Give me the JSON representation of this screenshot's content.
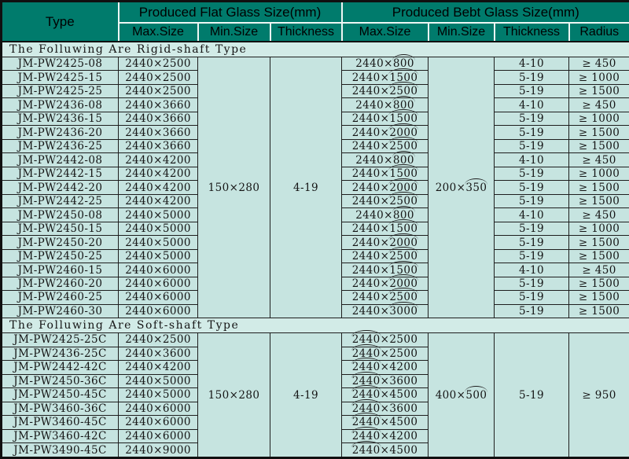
{
  "table": {
    "header": {
      "type_label": "Type",
      "flat_group_label": "Produced Flat Glass Size(mm)",
      "bent_group_label": "Produced Bebt Glass Size(mm)",
      "sub": {
        "flat_max": "Max.Size",
        "flat_min": "Min.Size",
        "flat_thickness": "Thickness",
        "bent_max": "Max.Size",
        "bent_min": "Min.Size",
        "bent_thickness": "Thickness",
        "radius": "Radius"
      }
    },
    "arc_note": "values wrapped in [] carry an arc/overbrace mark in the original",
    "sections": [
      {
        "title": "The Folluwing Are Rigid-shaft Type",
        "merged": {
          "flat_min": "150×280",
          "flat_thickness": "4-19",
          "bent_min": "200×[350]"
        },
        "rows": [
          {
            "type": "JM-PW2425-08",
            "flat_max": "2440×2500",
            "bent_max": "2440×[800]",
            "bent_thickness": "4-10",
            "radius": "≥ 450"
          },
          {
            "type": "JM-PW2425-15",
            "flat_max": "2440×2500",
            "bent_max": "2440×[1500]",
            "bent_thickness": "5-19",
            "radius": "≥ 1000"
          },
          {
            "type": "JM-PW2425-25",
            "flat_max": "2440×2500",
            "bent_max": "2440×[2500]",
            "bent_thickness": "5-19",
            "radius": "≥ 1500"
          },
          {
            "type": "JM-PW2436-08",
            "flat_max": "2440×3660",
            "bent_max": "2440×[800]",
            "bent_thickness": "4-10",
            "radius": "≥ 450"
          },
          {
            "type": "JM-PW2436-15",
            "flat_max": "2440×3660",
            "bent_max": "2440×[1500]",
            "bent_thickness": "5-19",
            "radius": "≥ 1000"
          },
          {
            "type": "JM-PW2436-20",
            "flat_max": "2440×3660",
            "bent_max": "2440×[2000]",
            "bent_thickness": "5-19",
            "radius": "≥ 1500"
          },
          {
            "type": "JM-PW2436-25",
            "flat_max": "2440×3660",
            "bent_max": "2440×[2500]",
            "bent_thickness": "5-19",
            "radius": "≥ 1500"
          },
          {
            "type": "JM-PW2442-08",
            "flat_max": "2440×4200",
            "bent_max": "2440×[800]",
            "bent_thickness": "4-10",
            "radius": "≥ 450"
          },
          {
            "type": "JM-PW2442-15",
            "flat_max": "2440×4200",
            "bent_max": "2440×[1500]",
            "bent_thickness": "5-19",
            "radius": "≥ 1000"
          },
          {
            "type": "JM-PW2442-20",
            "flat_max": "2440×4200",
            "bent_max": "2440×[2000]",
            "bent_thickness": "5-19",
            "radius": "≥ 1500"
          },
          {
            "type": "JM-PW2442-25",
            "flat_max": "2440×4200",
            "bent_max": "2440×[2500]",
            "bent_thickness": "5-19",
            "radius": "≥ 1500"
          },
          {
            "type": "JM-PW2450-08",
            "flat_max": "2440×5000",
            "bent_max": "2440×[800]",
            "bent_thickness": "4-10",
            "radius": "≥ 450"
          },
          {
            "type": "JM-PW2450-15",
            "flat_max": "2440×5000",
            "bent_max": "2440×[1500]",
            "bent_thickness": "5-19",
            "radius": "≥ 1000"
          },
          {
            "type": "JM-PW2450-20",
            "flat_max": "2440×5000",
            "bent_max": "2440×[2000]",
            "bent_thickness": "5-19",
            "radius": "≥ 1500"
          },
          {
            "type": "JM-PW2450-25",
            "flat_max": "2440×5000",
            "bent_max": "2440×[2500]",
            "bent_thickness": "5-19",
            "radius": "≥ 1500"
          },
          {
            "type": "JM-PW2460-15",
            "flat_max": "2440×6000",
            "bent_max": "2440×[1500]",
            "bent_thickness": "4-10",
            "radius": "≥ 450"
          },
          {
            "type": "JM-PW2460-20",
            "flat_max": "2440×6000",
            "bent_max": "2440×[2000]",
            "bent_thickness": "5-19",
            "radius": "≥ 1500"
          },
          {
            "type": "JM-PW2460-25",
            "flat_max": "2440×6000",
            "bent_max": "2440×[2500]",
            "bent_thickness": "5-19",
            "radius": "≥ 1500"
          },
          {
            "type": "JM-PW2460-30",
            "flat_max": "2440×6000",
            "bent_max": "2440×[3000]",
            "bent_thickness": "5-19",
            "radius": "≥ 1500"
          }
        ]
      },
      {
        "title": "The Folluwing Are Soft-shaft Type",
        "merged": {
          "flat_min": "150×280",
          "flat_thickness": "4-19",
          "bent_min": "400×[500]",
          "bent_thickness": "5-19",
          "radius": "≥ 950"
        },
        "rows": [
          {
            "type": "JM-PW2425-25C",
            "flat_max": "2440×2500",
            "bent_max": "[2440]×2500"
          },
          {
            "type": "JM-PW2436-25C",
            "flat_max": "2440×3600",
            "bent_max": "[2440]×2500"
          },
          {
            "type": "JM-PW2442-42C",
            "flat_max": "2440×4200",
            "bent_max": "[2440]×4200"
          },
          {
            "type": "JM-PW2450-36C",
            "flat_max": "2440×5000",
            "bent_max": "[2440]×3600"
          },
          {
            "type": "JM-PW2450-45C",
            "flat_max": "2440×5000",
            "bent_max": "[2440]×4500"
          },
          {
            "type": "JM-PW3460-36C",
            "flat_max": "2440×6000",
            "bent_max": "[2440]×3600"
          },
          {
            "type": "JM-PW3460-45C",
            "flat_max": "2440×6000",
            "bent_max": "[2440]×4500"
          },
          {
            "type": "JM-PW3460-42C",
            "flat_max": "2440×6000",
            "bent_max": "[2440]×4200"
          },
          {
            "type": "JM-PW3490-45C",
            "flat_max": "2440×9000",
            "bent_max": "[2440]×4500"
          }
        ]
      }
    ],
    "colors": {
      "header_bg": "#007b6c",
      "body_bg": "#c6e4e0",
      "section_bg": "#d2ebe7",
      "grid_line": "#1e1e1e",
      "header_separator": "#eef6f4"
    }
  }
}
